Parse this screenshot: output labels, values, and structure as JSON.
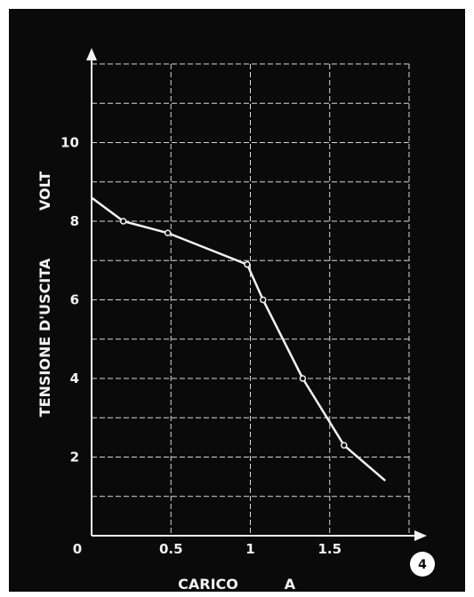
{
  "chart_data": {
    "type": "line",
    "title": "",
    "xlabel": "CARICO",
    "xunit": "A",
    "ylabel": "TENSIONE D'USCITA",
    "yunit": "VOLT",
    "xlim": [
      0,
      2
    ],
    "ylim": [
      0,
      12
    ],
    "x_ticks": [
      0.5,
      1,
      1.5
    ],
    "x_tick_labels": [
      "0.5",
      "1",
      "1.5"
    ],
    "y_ticks": [
      2,
      4,
      6,
      8,
      10
    ],
    "y_tick_labels": [
      "2",
      "4",
      "6",
      "8",
      "10"
    ],
    "origin_label": "0",
    "grid": true,
    "series": [
      {
        "curve": [
          {
            "x": 0.0,
            "y": 8.6
          },
          {
            "x": 0.2,
            "y": 8.0
          },
          {
            "x": 0.48,
            "y": 7.7
          },
          {
            "x": 0.98,
            "y": 6.9
          },
          {
            "x": 1.08,
            "y": 6.0
          },
          {
            "x": 1.33,
            "y": 4.0
          },
          {
            "x": 1.59,
            "y": 2.3
          },
          {
            "x": 1.85,
            "y": 1.4
          }
        ],
        "markers": [
          {
            "x": 0.2,
            "y": 8.0
          },
          {
            "x": 0.48,
            "y": 7.7
          },
          {
            "x": 0.98,
            "y": 6.9
          },
          {
            "x": 1.08,
            "y": 6.0
          },
          {
            "x": 1.33,
            "y": 4.0
          },
          {
            "x": 1.59,
            "y": 2.3
          }
        ]
      }
    ],
    "figure_number": "4"
  },
  "colors": {
    "background": "#0a0a0a",
    "frame": "#ffffff",
    "foreground": "#f2f2f2",
    "grid": "#d8d8d8"
  }
}
